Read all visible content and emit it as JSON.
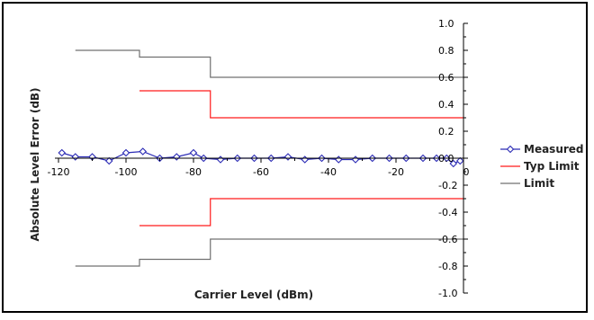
{
  "chart_data": {
    "type": "line",
    "xlabel": "Carrier Level (dBm)",
    "ylabel": "Absolute Level Error (dB)",
    "xlim": [
      -120,
      0
    ],
    "ylim": [
      -1.0,
      1.0
    ],
    "x_ticks": [
      "-120",
      "-100",
      "-80",
      "-60",
      "-40",
      "-20",
      "0"
    ],
    "y_ticks": [
      "1.0",
      "0.8",
      "0.6",
      "0.4",
      "0.2",
      "0.0",
      "-0.2",
      "-0.4",
      "-0.6",
      "-0.8",
      "-1.0"
    ],
    "grid": false,
    "legend_position": "right",
    "series": [
      {
        "name": "Measured",
        "color": "#2b2bb5",
        "marker": "diamond",
        "points": [
          [
            -119,
            0.04
          ],
          [
            -115,
            0.01
          ],
          [
            -110,
            0.01
          ],
          [
            -105,
            -0.02
          ],
          [
            -100,
            0.04
          ],
          [
            -95,
            0.05
          ],
          [
            -90,
            0.0
          ],
          [
            -85,
            0.01
          ],
          [
            -80,
            0.04
          ],
          [
            -77,
            0.0
          ],
          [
            -72,
            -0.01
          ],
          [
            -67,
            0.0
          ],
          [
            -62,
            0.0
          ],
          [
            -57,
            0.0
          ],
          [
            -52,
            0.01
          ],
          [
            -47,
            -0.01
          ],
          [
            -42,
            0.0
          ],
          [
            -37,
            -0.01
          ],
          [
            -32,
            -0.01
          ],
          [
            -27,
            0.0
          ],
          [
            -22,
            0.0
          ],
          [
            -17,
            0.0
          ],
          [
            -12,
            0.0
          ],
          [
            -8,
            0.0
          ],
          [
            -5,
            0.0
          ],
          [
            -3,
            -0.04
          ],
          [
            -1,
            -0.02
          ]
        ]
      },
      {
        "name": "Typ Limit",
        "color": "#ff1a1a",
        "segments": [
          [
            [
              -96,
              0.5
            ],
            [
              -75,
              0.5
            ],
            [
              -75,
              0.3
            ],
            [
              0,
              0.3
            ]
          ],
          [
            [
              -96,
              -0.5
            ],
            [
              -75,
              -0.5
            ],
            [
              -75,
              -0.3
            ],
            [
              0,
              -0.3
            ]
          ]
        ]
      },
      {
        "name": "Limit",
        "color": "#707070",
        "segments": [
          [
            [
              -115,
              0.8
            ],
            [
              -96,
              0.8
            ],
            [
              -96,
              0.75
            ],
            [
              -75,
              0.75
            ],
            [
              -75,
              0.6
            ],
            [
              0,
              0.6
            ]
          ],
          [
            [
              -115,
              -0.8
            ],
            [
              -96,
              -0.8
            ],
            [
              -96,
              -0.75
            ],
            [
              -75,
              -0.75
            ],
            [
              -75,
              -0.6
            ],
            [
              0,
              -0.6
            ]
          ]
        ]
      }
    ]
  }
}
